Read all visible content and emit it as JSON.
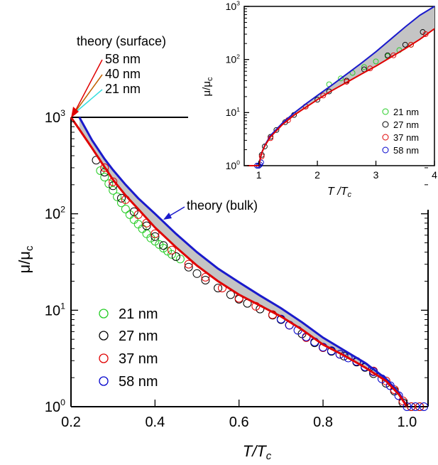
{
  "chart_data": [
    {
      "type": "scatter",
      "panel": "main",
      "xlabel": "T/T",
      "xlabel_sub": "c",
      "ylabel": "μ/μ",
      "ylabel_sub": "c",
      "xlim": [
        0.2,
        1.05
      ],
      "ylim": [
        1,
        1000
      ],
      "yscale": "log",
      "xticks": [
        0.2,
        0.4,
        0.6,
        0.8,
        1.0
      ],
      "xtick_labels": [
        "0.2",
        "0.4",
        "0.6",
        "0.8",
        "1.0"
      ],
      "yticks": [
        1,
        10,
        100,
        1000
      ],
      "ytick_labels": [
        {
          "base": "10",
          "exp": "0"
        },
        {
          "base": "10",
          "exp": "1"
        },
        {
          "base": "10",
          "exp": "2"
        },
        {
          "base": "10",
          "exp": "3"
        }
      ],
      "legend": {
        "placement": "bottom-left",
        "entries": [
          {
            "label": "21 nm",
            "color": "#22cc22"
          },
          {
            "label": "27 nm",
            "color": "#000000"
          },
          {
            "label": "37 nm",
            "color": "#e00000"
          },
          {
            "label": "58 nm",
            "color": "#0000cc"
          }
        ]
      },
      "annotations": {
        "surface_title": "theory (surface)",
        "surface_labels": [
          {
            "label": "58 nm",
            "color": "#e00000"
          },
          {
            "label": "40 nm",
            "color": "#c06000"
          },
          {
            "label": "21 nm",
            "color": "#33dddd"
          }
        ],
        "bulk_label": "theory (bulk)",
        "bulk_color": "#1a1acc"
      },
      "series": [
        {
          "name": "21 nm",
          "color": "#22cc22",
          "x": [
            0.27,
            0.28,
            0.29,
            0.3,
            0.31,
            0.32,
            0.33,
            0.34,
            0.35,
            0.36,
            0.37,
            0.38,
            0.39,
            0.4,
            0.41,
            0.42,
            0.43,
            0.44,
            0.45,
            0.46
          ],
          "y": [
            280,
            240,
            205,
            175,
            150,
            130,
            112,
            98,
            87,
            78,
            70,
            62,
            56,
            52,
            48,
            44,
            41,
            38,
            36,
            34
          ]
        },
        {
          "name": "27 nm",
          "color": "#000000",
          "x": [
            0.26,
            0.28,
            0.3,
            0.32,
            0.35,
            0.38,
            0.4,
            0.42,
            0.45,
            0.48,
            0.5,
            0.52,
            0.55,
            0.58,
            0.6,
            0.62,
            0.65,
            0.68,
            0.7,
            0.72,
            0.75,
            0.78,
            0.8,
            0.82,
            0.85,
            0.88,
            0.9,
            0.92,
            0.95,
            0.97,
            0.99,
            1.01,
            1.03
          ],
          "y": [
            360,
            270,
            195,
            145,
            105,
            75,
            58,
            47,
            36,
            28,
            24,
            20.5,
            17,
            14.5,
            13,
            11.8,
            10.3,
            8.9,
            8.0,
            7.0,
            5.7,
            4.6,
            4.1,
            3.75,
            3.35,
            2.9,
            2.55,
            2.2,
            1.75,
            1.45,
            1.1,
            1.0,
            1.0
          ]
        },
        {
          "name": "37 nm",
          "color": "#e00000",
          "x": [
            0.28,
            0.3,
            0.33,
            0.36,
            0.38,
            0.4,
            0.44,
            0.48,
            0.52,
            0.56,
            0.6,
            0.64,
            0.68,
            0.72,
            0.76,
            0.8,
            0.84,
            0.88,
            0.92,
            0.95,
            0.97,
            0.99,
            1.01,
            1.03
          ],
          "y": [
            300,
            215,
            140,
            98,
            80,
            62,
            42,
            30,
            22,
            17,
            13.3,
            11.0,
            9.0,
            7.0,
            5.2,
            4.1,
            3.5,
            2.95,
            2.35,
            1.85,
            1.5,
            1.15,
            1.0,
            1.0
          ]
        },
        {
          "name": "58 nm",
          "color": "#0000cc",
          "x": [
            0.7,
            0.72,
            0.74,
            0.76,
            0.78,
            0.8,
            0.82,
            0.84,
            0.86,
            0.88,
            0.9,
            0.92,
            0.94,
            0.96,
            0.98,
            1.0,
            1.02,
            1.04
          ],
          "y": [
            8.1,
            7.0,
            6.2,
            5.3,
            4.7,
            4.15,
            3.8,
            3.5,
            3.2,
            2.95,
            2.6,
            2.3,
            1.95,
            1.65,
            1.3,
            1.0,
            1.0,
            1.0
          ]
        }
      ],
      "curves": [
        {
          "name": "theory (bulk)",
          "color": "#1a1acc",
          "x": [
            0.22,
            0.25,
            0.28,
            0.3,
            0.33,
            0.36,
            0.4,
            0.45,
            0.5,
            0.55,
            0.6,
            0.65,
            0.7,
            0.75,
            0.8,
            0.85,
            0.9,
            0.95,
            0.98,
            1.0
          ],
          "y": [
            1000,
            580,
            370,
            285,
            200,
            145,
            100,
            62,
            40,
            27,
            19.5,
            14.2,
            10.5,
            7.5,
            5.2,
            3.85,
            2.85,
            1.95,
            1.4,
            1.0
          ]
        },
        {
          "name": "theory (surface) 58 nm",
          "color": "#e00000",
          "x": [
            0.2,
            0.22,
            0.25,
            0.28,
            0.3,
            0.33,
            0.36,
            0.4,
            0.45,
            0.5,
            0.55,
            0.6,
            0.65,
            0.7,
            0.75,
            0.8,
            0.85,
            0.9,
            0.95,
            0.98,
            1.0
          ],
          "y": [
            1000,
            750,
            480,
            305,
            225,
            155,
            112,
            72,
            45,
            29,
            20,
            14.5,
            11.2,
            8.6,
            6.3,
            4.4,
            3.4,
            2.55,
            1.85,
            1.35,
            1.0
          ]
        }
      ]
    },
    {
      "type": "scatter",
      "panel": "inset",
      "xlabel": "T /T",
      "xlabel_sub": "c",
      "ylabel": "μ/μ",
      "ylabel_sub": "c",
      "xlim": [
        0.75,
        4
      ],
      "ylim": [
        1,
        1000
      ],
      "yscale": "log",
      "xticks": [
        1,
        2,
        3,
        4
      ],
      "xtick_labels": [
        "1",
        "2",
        "3",
        "4"
      ],
      "yticks": [
        1,
        10,
        100,
        1000
      ],
      "ytick_labels": [
        {
          "base": "10",
          "exp": "0"
        },
        {
          "base": "10",
          "exp": "1"
        },
        {
          "base": "10",
          "exp": "2"
        },
        {
          "base": "10",
          "exp": "3"
        }
      ],
      "legend": {
        "placement": "bottom-right",
        "entries": [
          {
            "label": "21 nm",
            "color": "#22cc22"
          },
          {
            "label": "27 nm",
            "color": "#000000"
          },
          {
            "label": "37 nm",
            "color": "#e00000"
          },
          {
            "label": "58 nm",
            "color": "#0000cc"
          }
        ]
      },
      "series": [
        {
          "name": "21 nm",
          "color": "#22cc22",
          "x": [
            2.2,
            2.4,
            2.6,
            2.8,
            3.0,
            3.2,
            3.4,
            3.6
          ],
          "y": [
            34,
            44,
            56,
            72,
            92,
            115,
            150,
            190
          ]
        },
        {
          "name": "27 nm",
          "color": "#000000",
          "x": [
            0.97,
            1.0,
            1.05,
            1.1,
            1.2,
            1.3,
            1.45,
            1.6,
            1.8,
            2.0,
            2.2,
            2.5,
            2.8,
            3.2,
            3.5,
            3.8
          ],
          "y": [
            1.0,
            1.0,
            1.6,
            2.3,
            3.5,
            4.7,
            6.6,
            9.0,
            13,
            17.5,
            25,
            40,
            65,
            120,
            190,
            330
          ]
        },
        {
          "name": "37 nm",
          "color": "#e00000",
          "x": [
            1.05,
            1.2,
            1.5,
            1.8,
            2.1,
            2.5,
            2.9,
            3.3,
            3.6,
            3.85
          ],
          "y": [
            1.5,
            3.3,
            7.2,
            13,
            21,
            38,
            68,
            120,
            190,
            300
          ]
        },
        {
          "name": "58 nm",
          "color": "#0000cc",
          "x": [
            0.97,
            1.0,
            1.02,
            1.04
          ],
          "y": [
            1.0,
            1.0,
            1.05,
            1.15
          ]
        }
      ],
      "curves": [
        {
          "name": "theory (bulk)",
          "color": "#1a1acc",
          "x": [
            0.8,
            1.0,
            1.02,
            1.05,
            1.1,
            1.2,
            1.4,
            1.6,
            1.8,
            2.0,
            2.25,
            2.5,
            2.75,
            3.0,
            3.25,
            3.5,
            3.75,
            4.0
          ],
          "y": [
            1.0,
            1.0,
            1.3,
            1.75,
            2.4,
            3.7,
            6.3,
            9.8,
            14.5,
            21,
            33,
            53,
            85,
            140,
            240,
            410,
            680,
            1000
          ]
        },
        {
          "name": "theory (surface)",
          "color": "#e00000",
          "x": [
            0.8,
            1.0,
            1.02,
            1.05,
            1.1,
            1.2,
            1.4,
            1.6,
            1.8,
            2.0,
            2.25,
            2.5,
            2.75,
            3.0,
            3.25,
            3.5,
            3.75,
            4.0
          ],
          "y": [
            1.0,
            1.0,
            1.3,
            1.75,
            2.35,
            3.5,
            5.9,
            8.9,
            12.5,
            17.5,
            26,
            37,
            53,
            75,
            110,
            160,
            240,
            380
          ]
        }
      ]
    }
  ]
}
